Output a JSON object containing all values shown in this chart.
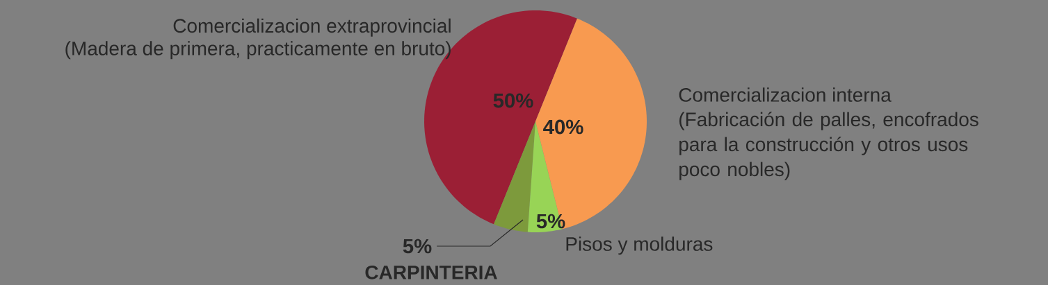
{
  "chart_data": {
    "type": "pie",
    "categories": [
      "Comercializacion extraprovincial",
      "CARPINTERIA",
      "Pisos y molduras",
      "Comercializacion interna"
    ],
    "values": [
      50,
      5,
      5,
      40
    ],
    "colors": [
      "#9b1f35",
      "#7d9a3c",
      "#98d456",
      "#f89a50"
    ],
    "value_labels": [
      "50%",
      "5%",
      "5%",
      "40%"
    ],
    "annotations": [
      "(Madera de primera, practicamente en bruto)",
      "(Fabricación de palles, encofrados para la construcción y otros usos poco nobles)"
    ]
  }
}
